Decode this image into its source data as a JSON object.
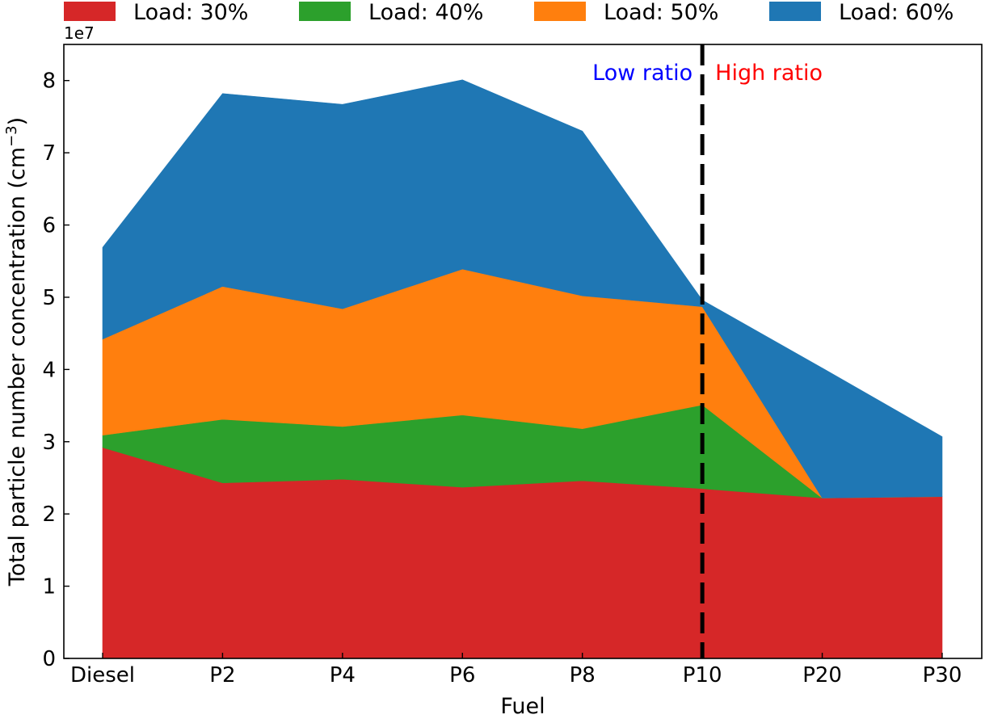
{
  "chart_data": {
    "type": "area",
    "stacked": true,
    "categories": [
      "Diesel",
      "P2",
      "P4",
      "P6",
      "P8",
      "P10",
      "P20",
      "P30"
    ],
    "xlabel": "Fuel",
    "ylabel": "Total particle number concentration (cm",
    "ylabel_exponent": "−3",
    "ylabel_close": ")",
    "y_offset_label": "1e7",
    "ylim": [
      0,
      85000000
    ],
    "y_ticks": [
      0,
      10000000,
      20000000,
      30000000,
      40000000,
      50000000,
      60000000,
      70000000,
      80000000
    ],
    "y_tick_labels": [
      "0",
      "1",
      "2",
      "3",
      "4",
      "5",
      "6",
      "7",
      "8"
    ],
    "legend_position": "top",
    "series": [
      {
        "name": "Load: 30%",
        "color": "#d62728",
        "values": [
          29200000,
          24300000,
          24800000,
          23700000,
          24600000,
          23500000,
          22200000,
          22400000
        ]
      },
      {
        "name": "Load: 40%",
        "color": "#2ca02c",
        "values": [
          1700000,
          8800000,
          7300000,
          10000000,
          7200000,
          11600000,
          0,
          0
        ]
      },
      {
        "name": "Load: 50%",
        "color": "#ff7f0e",
        "values": [
          13300000,
          18400000,
          16300000,
          20200000,
          18400000,
          13600000,
          0,
          0
        ]
      },
      {
        "name": "Load: 60%",
        "color": "#1f77b4",
        "values": [
          12700000,
          26700000,
          28300000,
          26200000,
          22800000,
          900000,
          18000000,
          8300000
        ]
      }
    ],
    "annotations": {
      "divider_category_index": 5,
      "low_label": "Low ratio",
      "low_color": "#0000ff",
      "high_label": "High ratio",
      "high_color": "#ff0000"
    }
  }
}
